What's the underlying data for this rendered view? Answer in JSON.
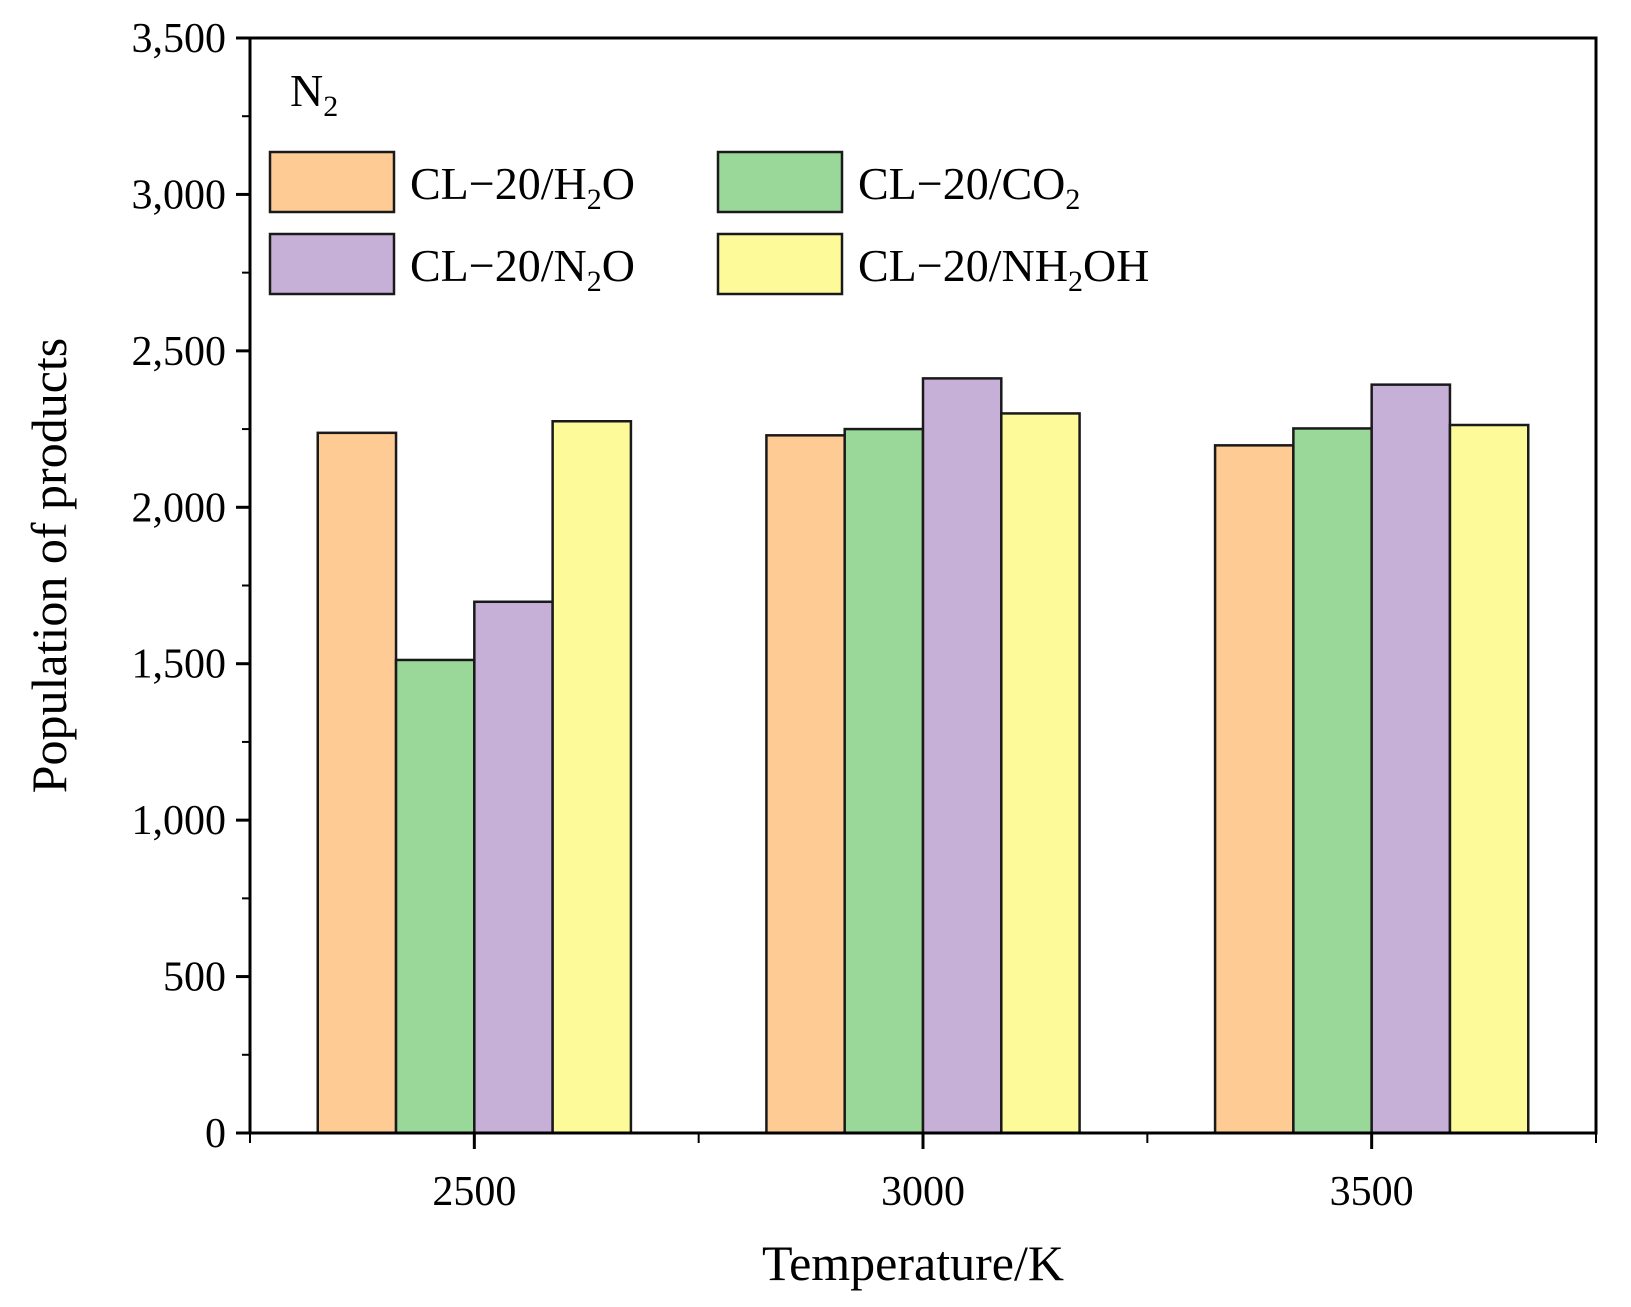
{
  "chart_data": {
    "type": "bar",
    "panel_label": {
      "main": "N",
      "sub": "2"
    },
    "xlabel": "Temperature/K",
    "ylabel": "Population of products",
    "categories": [
      "2500",
      "3000",
      "3500"
    ],
    "ylim": [
      0,
      3500
    ],
    "yticks": [
      0,
      500,
      1000,
      1500,
      2000,
      2500,
      3000,
      3500
    ],
    "ytick_labels": [
      "0",
      "500",
      "1,000",
      "1,500",
      "2,000",
      "2,500",
      "3,000",
      "3,500"
    ],
    "legend_position": "top-left",
    "grid": false,
    "series": [
      {
        "name": "CL−20/H2O",
        "label_parts": [
          {
            "t": "CL−20/H"
          },
          {
            "t": "2",
            "sub": true
          },
          {
            "t": "O"
          }
        ],
        "color": "#FDCB93",
        "values": [
          2238,
          2230,
          2198
        ]
      },
      {
        "name": "CL−20/CO2",
        "label_parts": [
          {
            "t": "CL−20/CO"
          },
          {
            "t": "2",
            "sub": true
          }
        ],
        "color": "#9AD89A",
        "values": [
          1512,
          2250,
          2252
        ]
      },
      {
        "name": "CL−20/N2O",
        "label_parts": [
          {
            "t": "CL−20/N"
          },
          {
            "t": "2",
            "sub": true
          },
          {
            "t": "O"
          }
        ],
        "color": "#C6B0D8",
        "values": [
          1698,
          2412,
          2392
        ]
      },
      {
        "name": "CL−20/NH2OH",
        "label_parts": [
          {
            "t": "CL−20/NH"
          },
          {
            "t": "2",
            "sub": true
          },
          {
            "t": "OH"
          }
        ],
        "color": "#FDFB99",
        "values": [
          2275,
          2300,
          2263
        ]
      }
    ]
  }
}
